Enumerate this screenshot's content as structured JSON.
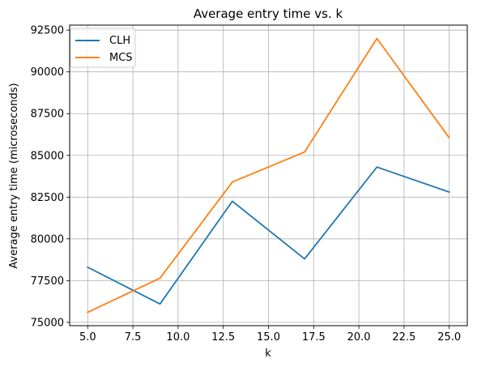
{
  "chart_data": {
    "type": "line",
    "title": "Average entry time vs. k",
    "xlabel": "k",
    "ylabel": "Average entry time (microseconds)",
    "x": [
      5,
      9,
      13,
      17,
      21,
      25
    ],
    "xlim": [
      4.0,
      26.0
    ],
    "ylim": [
      74800,
      92800
    ],
    "xticks": [
      5.0,
      7.5,
      10.0,
      12.5,
      15.0,
      17.5,
      20.0,
      22.5,
      25.0
    ],
    "xtick_labels": [
      "5.0",
      "7.5",
      "10.0",
      "12.5",
      "15.0",
      "17.5",
      "20.0",
      "22.5",
      "25.0"
    ],
    "yticks": [
      75000,
      77500,
      80000,
      82500,
      85000,
      87500,
      90000,
      92500
    ],
    "ytick_labels": [
      "75000",
      "77500",
      "80000",
      "82500",
      "85000",
      "87500",
      "90000",
      "92500"
    ],
    "grid": true,
    "legend_position": "top-left",
    "series": [
      {
        "name": "CLH",
        "color": "#1f77b4",
        "values": [
          78300,
          76100,
          82250,
          78800,
          84300,
          82800
        ]
      },
      {
        "name": "MCS",
        "color": "#ff7f0e",
        "values": [
          75600,
          77650,
          83400,
          85200,
          92000,
          86050
        ]
      }
    ]
  }
}
